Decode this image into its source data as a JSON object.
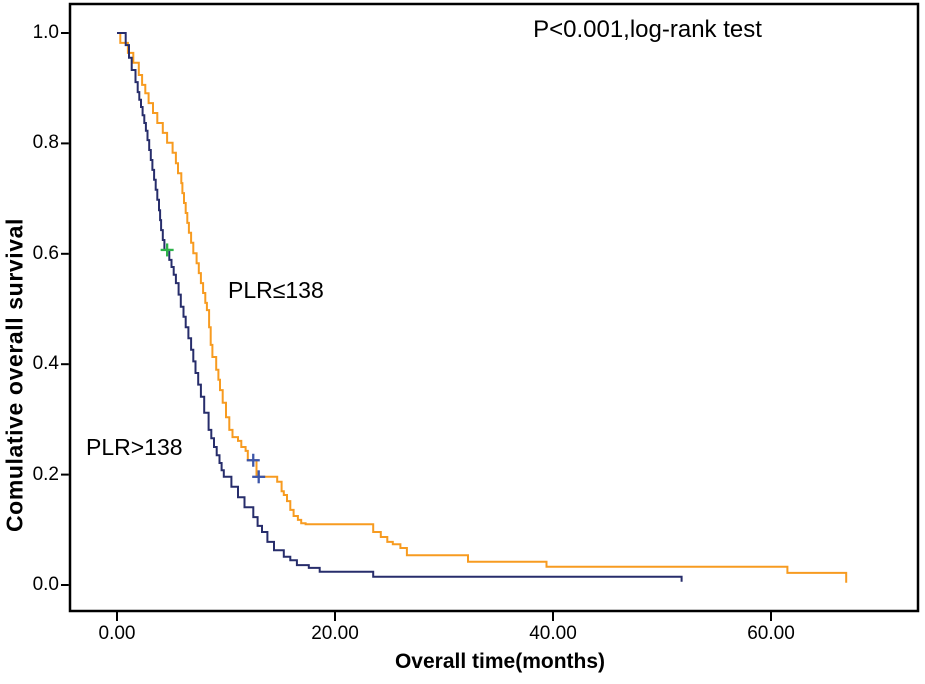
{
  "chart_data": {
    "type": "line",
    "subtype": "kaplan-meier-step-curves",
    "annotation": "P<0.001,log-rank test",
    "xlabel": "Overall time(months)",
    "ylabel": "Comulative overall survival",
    "xlim": [
      -4.4,
      73.8
    ],
    "ylim": [
      -0.05,
      1.055
    ],
    "grid": false,
    "legend_position": "inline-labels-on-plot",
    "x_ticks": [
      0,
      20,
      40,
      60
    ],
    "x_tick_labels": [
      "0.00",
      "20.00",
      "40.00",
      "60.00"
    ],
    "y_ticks": [
      1.0,
      0.8,
      0.6,
      0.4,
      0.2,
      0.0
    ],
    "y_tick_labels": [
      "1.0",
      "0.8",
      "0.6",
      "0.4",
      "0.2",
      "0.0"
    ],
    "frame_color": "#000000",
    "series": [
      {
        "id": "plr-le-138",
        "name": "PLR≤138",
        "label_text": "PLR≤138",
        "color": "#F79B20",
        "censor_color": "#3C55A8",
        "censors": [
          [
            12.5,
            0.226
          ],
          [
            13.0,
            0.196
          ]
        ],
        "points": [
          [
            0,
            1.0
          ],
          [
            0.3,
            0.982
          ],
          [
            1.0,
            0.964
          ],
          [
            1.5,
            0.946
          ],
          [
            2.0,
            0.924
          ],
          [
            2.3,
            0.906
          ],
          [
            2.6,
            0.891
          ],
          [
            2.9,
            0.873
          ],
          [
            3.3,
            0.855
          ],
          [
            3.7,
            0.837
          ],
          [
            4.2,
            0.819
          ],
          [
            4.6,
            0.801
          ],
          [
            5.1,
            0.783
          ],
          [
            5.4,
            0.764
          ],
          [
            5.6,
            0.746
          ],
          [
            5.9,
            0.728
          ],
          [
            6.0,
            0.71
          ],
          [
            6.15,
            0.692
          ],
          [
            6.3,
            0.674
          ],
          [
            6.45,
            0.656
          ],
          [
            6.6,
            0.638
          ],
          [
            6.8,
            0.62
          ],
          [
            7.0,
            0.601
          ],
          [
            7.3,
            0.583
          ],
          [
            7.5,
            0.565
          ],
          [
            7.7,
            0.547
          ],
          [
            7.9,
            0.529
          ],
          [
            8.1,
            0.511
          ],
          [
            8.25,
            0.498
          ],
          [
            8.45,
            0.467
          ],
          [
            8.6,
            0.435
          ],
          [
            8.75,
            0.413
          ],
          [
            9.1,
            0.39
          ],
          [
            9.3,
            0.372
          ],
          [
            9.45,
            0.353
          ],
          [
            9.7,
            0.33
          ],
          [
            10.0,
            0.304
          ],
          [
            10.3,
            0.281
          ],
          [
            10.6,
            0.268
          ],
          [
            11.1,
            0.261
          ],
          [
            11.4,
            0.25
          ],
          [
            11.8,
            0.243
          ],
          [
            12.0,
            0.226
          ],
          [
            12.8,
            0.196
          ],
          [
            14.7,
            0.187
          ],
          [
            15.1,
            0.17
          ],
          [
            15.3,
            0.163
          ],
          [
            15.6,
            0.152
          ],
          [
            15.9,
            0.136
          ],
          [
            16.2,
            0.125
          ],
          [
            16.6,
            0.118
          ],
          [
            16.9,
            0.112
          ],
          [
            17.3,
            0.11
          ],
          [
            23.5,
            0.096
          ],
          [
            24.2,
            0.087
          ],
          [
            24.8,
            0.078
          ],
          [
            25.3,
            0.074
          ],
          [
            26.0,
            0.067
          ],
          [
            26.6,
            0.054
          ],
          [
            32.2,
            0.042
          ],
          [
            39.4,
            0.033
          ],
          [
            61.5,
            0.022
          ],
          [
            66.9,
            0.022
          ],
          [
            66.9,
            0.004
          ]
        ]
      },
      {
        "id": "plr-gt-138",
        "name": "PLR>138",
        "label_text": "PLR>138",
        "color": "#272D6B",
        "censor_color": "#2EB34A",
        "censors": [
          [
            4.6,
            0.607
          ]
        ],
        "points": [
          [
            0,
            1.0
          ],
          [
            0.8,
            0.978
          ],
          [
            1.1,
            0.955
          ],
          [
            1.35,
            0.933
          ],
          [
            1.7,
            0.911
          ],
          [
            1.9,
            0.893
          ],
          [
            2.05,
            0.879
          ],
          [
            2.2,
            0.866
          ],
          [
            2.35,
            0.851
          ],
          [
            2.5,
            0.837
          ],
          [
            2.65,
            0.823
          ],
          [
            2.8,
            0.806
          ],
          [
            2.95,
            0.788
          ],
          [
            3.1,
            0.77
          ],
          [
            3.25,
            0.752
          ],
          [
            3.4,
            0.734
          ],
          [
            3.55,
            0.716
          ],
          [
            3.7,
            0.698
          ],
          [
            3.85,
            0.679
          ],
          [
            3.95,
            0.661
          ],
          [
            4.05,
            0.643
          ],
          [
            4.2,
            0.625
          ],
          [
            4.35,
            0.607
          ],
          [
            4.8,
            0.589
          ],
          [
            5.0,
            0.576
          ],
          [
            5.2,
            0.562
          ],
          [
            5.4,
            0.547
          ],
          [
            5.65,
            0.526
          ],
          [
            5.85,
            0.504
          ],
          [
            6.1,
            0.486
          ],
          [
            6.3,
            0.467
          ],
          [
            6.55,
            0.447
          ],
          [
            6.8,
            0.426
          ],
          [
            7.0,
            0.405
          ],
          [
            7.2,
            0.384
          ],
          [
            7.45,
            0.363
          ],
          [
            7.7,
            0.341
          ],
          [
            8.0,
            0.312
          ],
          [
            8.4,
            0.281
          ],
          [
            8.65,
            0.266
          ],
          [
            8.9,
            0.25
          ],
          [
            9.15,
            0.235
          ],
          [
            9.4,
            0.221
          ],
          [
            9.6,
            0.208
          ],
          [
            9.8,
            0.196
          ],
          [
            10.5,
            0.178
          ],
          [
            11.1,
            0.159
          ],
          [
            11.7,
            0.141
          ],
          [
            12.5,
            0.123
          ],
          [
            12.9,
            0.107
          ],
          [
            13.3,
            0.096
          ],
          [
            13.8,
            0.078
          ],
          [
            14.4,
            0.063
          ],
          [
            15.3,
            0.051
          ],
          [
            15.9,
            0.045
          ],
          [
            16.5,
            0.036
          ],
          [
            17.6,
            0.031
          ],
          [
            18.6,
            0.024
          ],
          [
            23.5,
            0.015
          ],
          [
            51.8,
            0.015
          ],
          [
            51.8,
            0.006
          ]
        ]
      }
    ]
  }
}
